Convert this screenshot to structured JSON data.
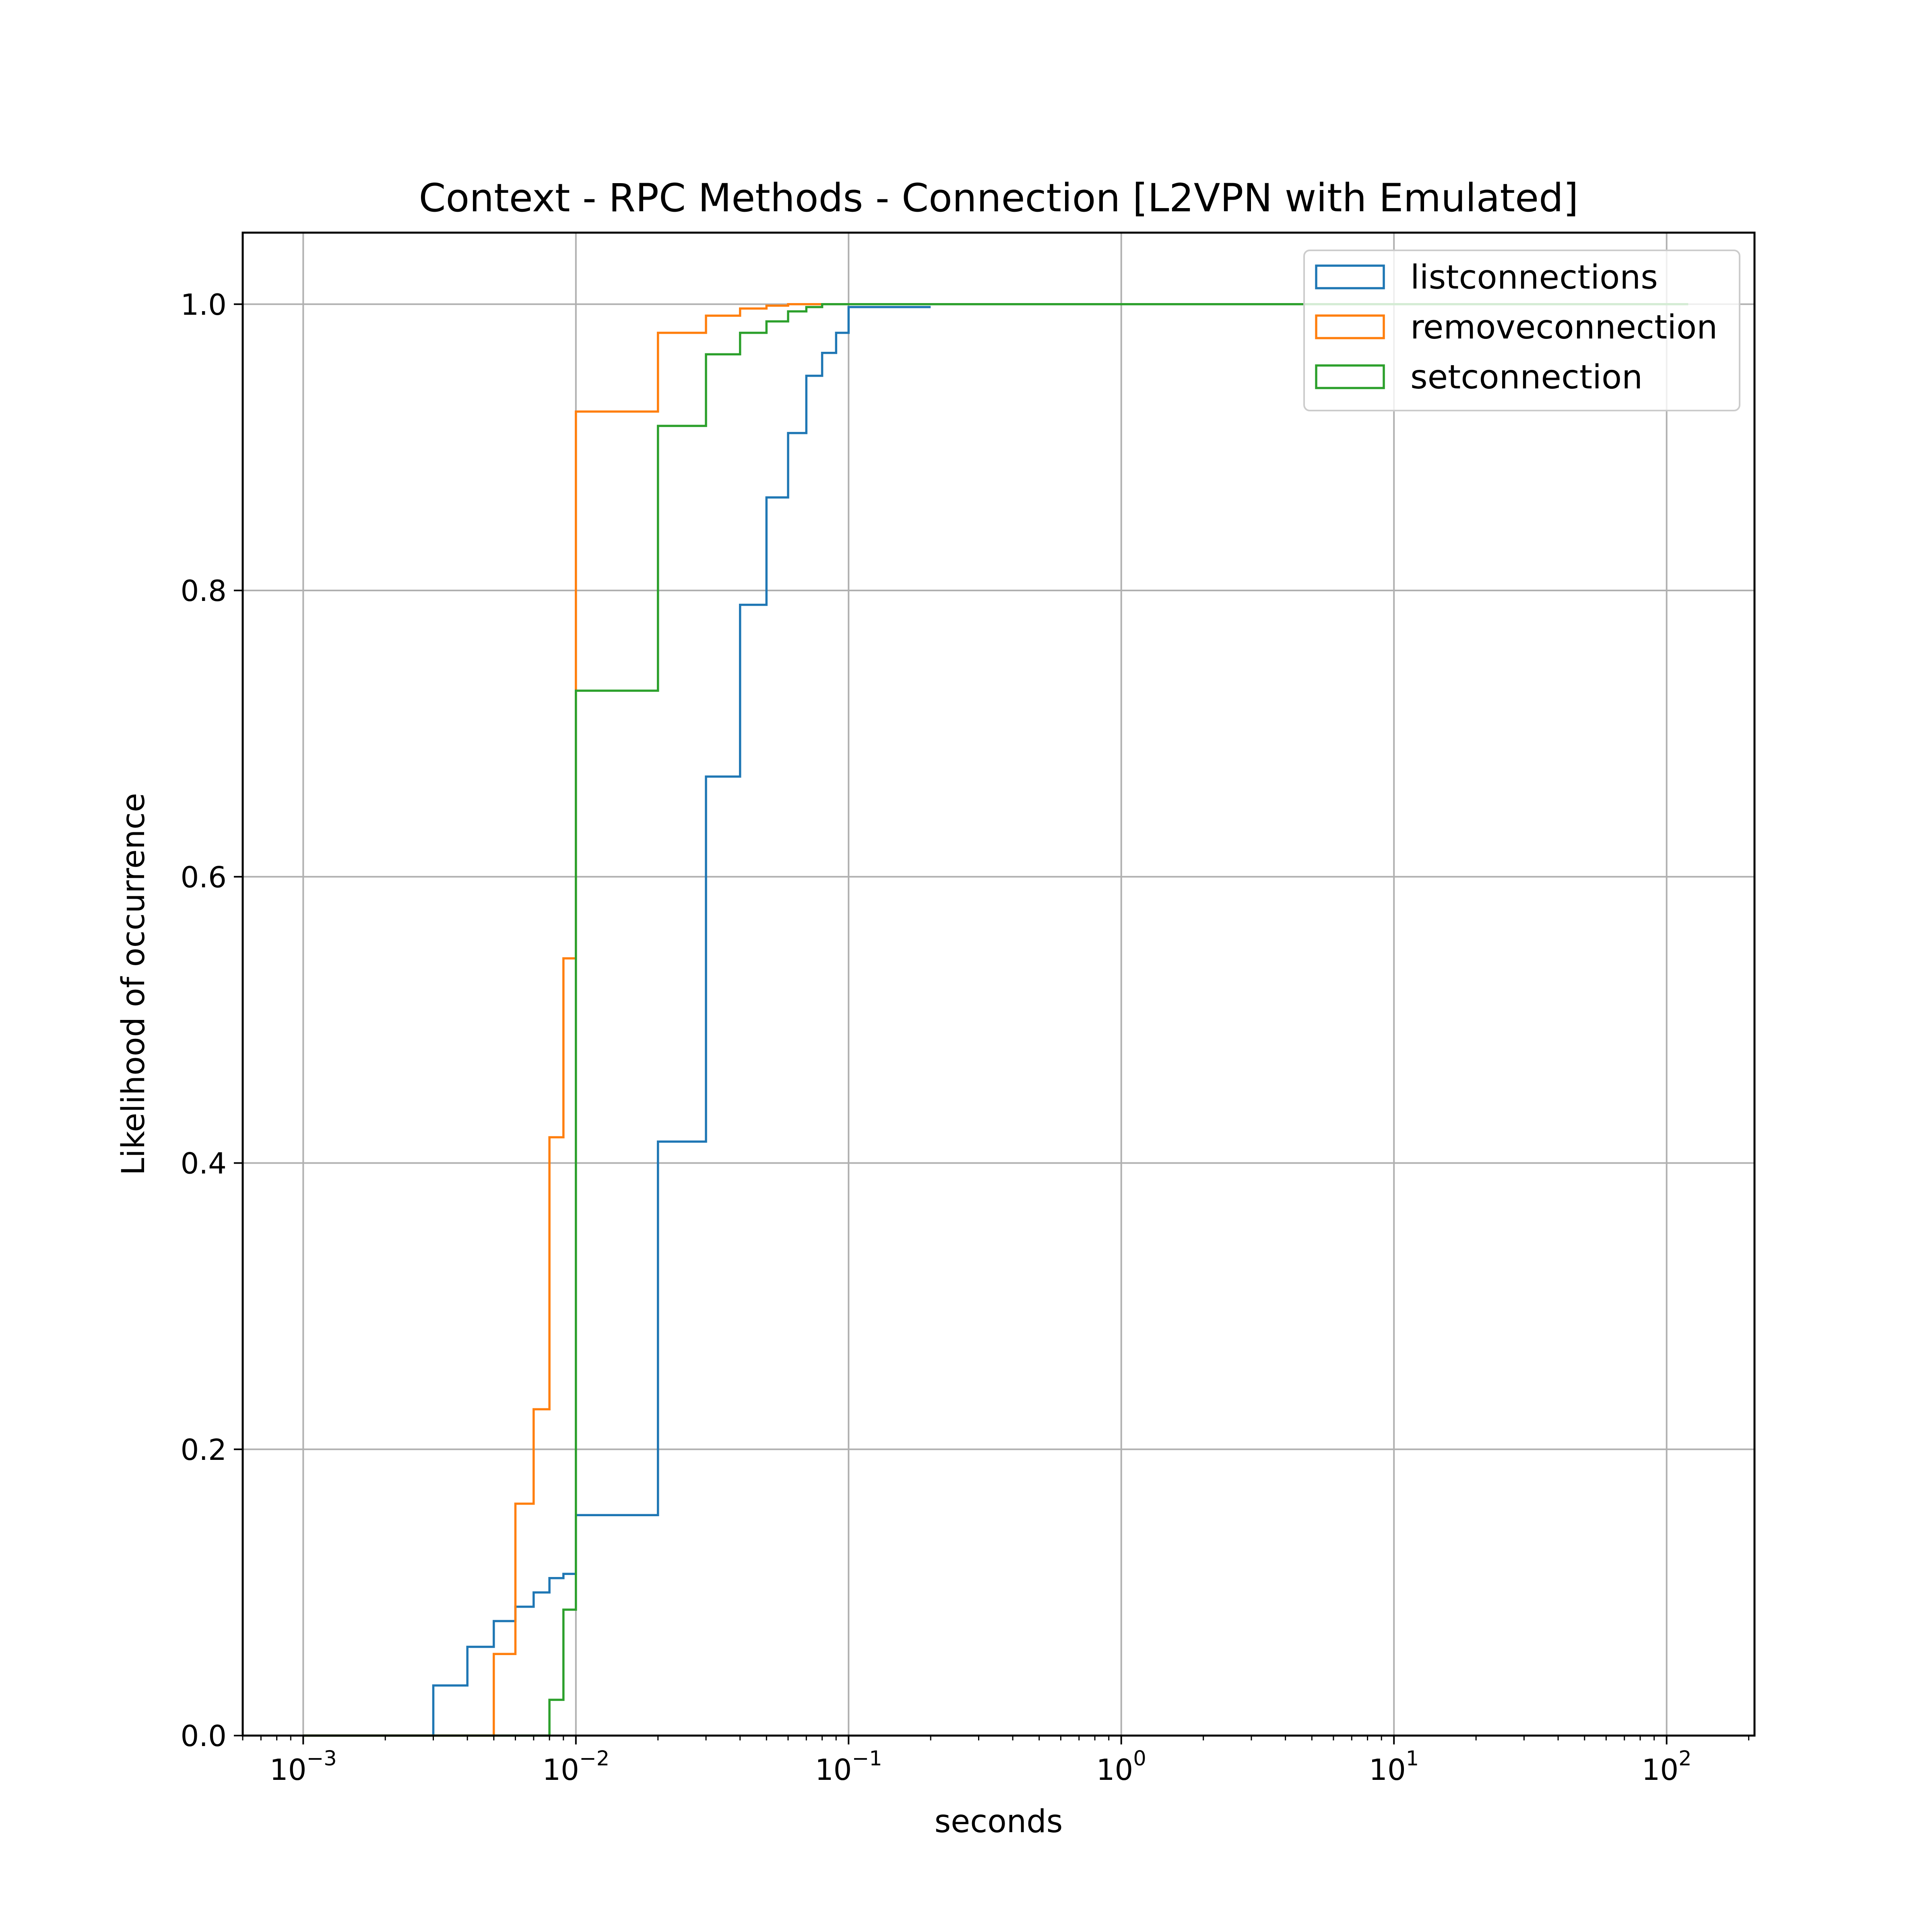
{
  "chart_data": {
    "type": "line",
    "subtype": "step-cdf",
    "title": "Context - RPC Methods - Connection [L2VPN with Emulated]",
    "xlabel": "seconds",
    "ylabel": "Likelihood of occurrence",
    "xscale": "log",
    "xlim": [
      0.0006,
      210
    ],
    "ylim": [
      0,
      1.05
    ],
    "grid": true,
    "legend_position": "top-right",
    "x_ticks": [
      {
        "base": "10",
        "exp": "−3",
        "value": 0.001
      },
      {
        "base": "10",
        "exp": "−2",
        "value": 0.01
      },
      {
        "base": "10",
        "exp": "−1",
        "value": 0.1
      },
      {
        "base": "10",
        "exp": "0",
        "value": 1
      },
      {
        "base": "10",
        "exp": "1",
        "value": 10
      },
      {
        "base": "10",
        "exp": "2",
        "value": 100
      }
    ],
    "y_ticks": [
      {
        "label": "0.0",
        "value": 0.0
      },
      {
        "label": "0.2",
        "value": 0.2
      },
      {
        "label": "0.4",
        "value": 0.4
      },
      {
        "label": "0.6",
        "value": 0.6
      },
      {
        "label": "0.8",
        "value": 0.8
      },
      {
        "label": "1.0",
        "value": 1.0
      }
    ],
    "series": [
      {
        "name": "listconnections",
        "color": "#1f77b4",
        "x": [
          0.001,
          0.002,
          0.003,
          0.004,
          0.005,
          0.006,
          0.007,
          0.008,
          0.009,
          0.01,
          0.02,
          0.03,
          0.04,
          0.05,
          0.06,
          0.07,
          0.08,
          0.09,
          0.1,
          0.2
        ],
        "y": [
          0.0,
          0.0,
          0.035,
          0.062,
          0.08,
          0.09,
          0.1,
          0.11,
          0.113,
          0.154,
          0.415,
          0.67,
          0.79,
          0.865,
          0.91,
          0.95,
          0.966,
          0.98,
          0.998,
          0.998
        ]
      },
      {
        "name": "removeconnection",
        "color": "#ff7f0e",
        "x": [
          0.001,
          0.002,
          0.003,
          0.004,
          0.005,
          0.006,
          0.007,
          0.008,
          0.009,
          0.01,
          0.02,
          0.03,
          0.04,
          0.05,
          0.06,
          0.07,
          0.08
        ],
        "y": [
          0.0,
          0.0,
          0.0,
          0.0,
          0.057,
          0.162,
          0.228,
          0.418,
          0.543,
          0.925,
          0.98,
          0.992,
          0.997,
          0.999,
          1.0,
          1.0,
          1.0
        ]
      },
      {
        "name": "setconnection",
        "color": "#2ca02c",
        "x": [
          0.001,
          0.002,
          0.003,
          0.004,
          0.005,
          0.006,
          0.007,
          0.008,
          0.009,
          0.01,
          0.02,
          0.03,
          0.04,
          0.05,
          0.06,
          0.07,
          0.08,
          0.09,
          0.1,
          120
        ],
        "y": [
          0.0,
          0.0,
          0.0,
          0.0,
          0.0,
          0.0,
          0.0,
          0.025,
          0.088,
          0.73,
          0.915,
          0.965,
          0.98,
          0.988,
          0.995,
          0.998,
          1.0,
          1.0,
          1.0,
          1.0
        ]
      }
    ]
  }
}
